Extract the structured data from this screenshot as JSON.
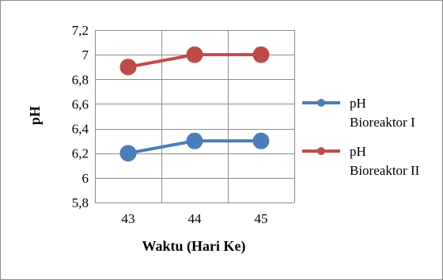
{
  "chart_data": {
    "type": "line",
    "xlabel": "Waktu (Hari Ke)",
    "ylabel": "pH",
    "categories": [
      "43",
      "44",
      "45"
    ],
    "ylim": [
      5.8,
      7.2
    ],
    "ytick_step": 0.2,
    "ytick_labels": [
      "5,8",
      "6",
      "6,2",
      "6,4",
      "6,6",
      "6,8",
      "7",
      "7,2"
    ],
    "grid": true,
    "legend_position": "right",
    "series": [
      {
        "name": "pH Bioreaktor I",
        "legend_lines": [
          "pH",
          "Bioreaktor I"
        ],
        "values": [
          6.2,
          6.3,
          6.3
        ],
        "color": "#4a7ebb"
      },
      {
        "name": "pH Bioreaktor II",
        "legend_lines": [
          "pH",
          "Bioreaktor II"
        ],
        "values": [
          6.9,
          7.0,
          7.0
        ],
        "color": "#be4b48"
      }
    ]
  }
}
